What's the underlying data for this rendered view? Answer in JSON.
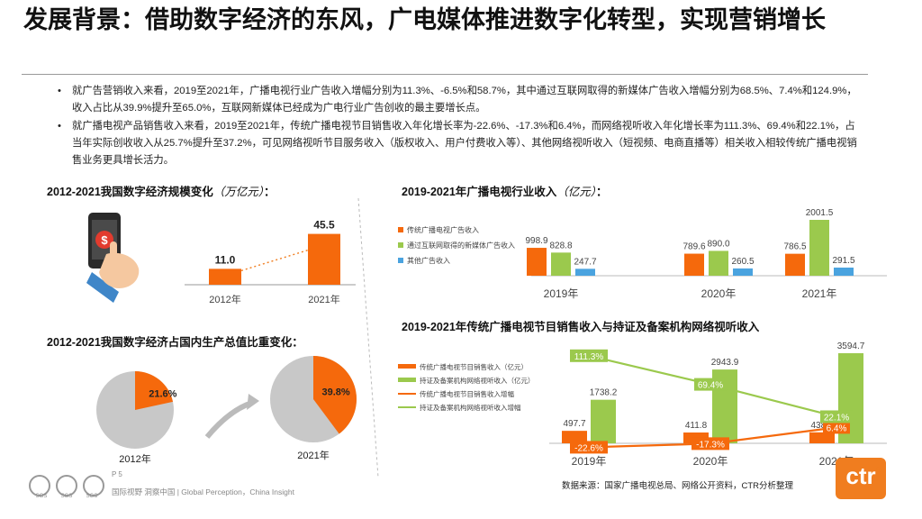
{
  "title": "发展背景：借助数字经济的东风，广电媒体推进数字化转型，实现营销增长",
  "bullets": [
    "就广告营销收入来看，2019至2021年，广播电视行业广告收入增幅分别为11.3%、-6.5%和58.7%，其中通过互联网取得的新媒体广告收入增幅分别为68.5%、7.4%和124.9%，收入占比从39.9%提升至65.0%，互联网新媒体已经成为广电行业广告创收的最主要增长点。",
    "就广播电视产品销售收入来看，2019至2021年，传统广播电视节目销售收入年化增长率为-22.6%、-17.3%和6.4%，而网络视听收入年化增长率为111.3%、69.4%和22.1%，占当年实际创收收入从25.7%提升至37.2%，可见网络视听节目服务收入（版权收入、用户付费收入等）、其他网络视听收入（短视频、电商直播等）相关收入相较传统广播电视销售业务更具增长活力。"
  ],
  "bullet_marker": "•",
  "sections": {
    "s1": {
      "title": "2012-2021我国数字经济规模变化",
      "unit": "（万亿元）",
      "suffix": "："
    },
    "s2": {
      "title": "2012-2021我国数字经济占国内生产总值比重变化："
    },
    "s3": {
      "title": "2019-2021年广播电视行业收入",
      "unit": "（亿元）",
      "suffix": "："
    },
    "s4": {
      "title": "2019-2021年传统广播电视节目销售收入与持证及备案机构网络视听收入"
    }
  },
  "chart_data": [
    {
      "type": "bar",
      "categories": [
        "2012年",
        "2021年"
      ],
      "values": [
        11.0,
        45.5
      ],
      "labels": [
        "11.0",
        "45.5"
      ],
      "color": "#f5690c"
    },
    {
      "type": "pie",
      "charts": [
        {
          "category": "2012年",
          "value": 21.6,
          "label": "21.6%"
        },
        {
          "category": "2021年",
          "value": 39.8,
          "label": "39.8%"
        }
      ],
      "colors": {
        "share": "#f5690c",
        "rest": "#c8c8c8"
      }
    },
    {
      "type": "bar",
      "categories": [
        "2019年",
        "2020年",
        "2021年"
      ],
      "series": [
        {
          "name": "传统广播电视广告收入",
          "color": "#f5690c",
          "values": [
            998.9,
            789.6,
            786.5
          ],
          "labels": [
            "998.9",
            "789.6",
            "786.5"
          ]
        },
        {
          "name": "通过互联网取得的新媒体广告收入",
          "color": "#9bc94d",
          "values": [
            828.8,
            890.0,
            2001.5
          ],
          "labels": [
            "828.8",
            "890.0",
            "2001.5"
          ]
        },
        {
          "name": "其他广告收入",
          "color": "#4aa3df",
          "values": [
            247.7,
            260.5,
            291.5
          ],
          "labels": [
            "247.7",
            "260.5",
            "291.5"
          ]
        }
      ]
    },
    {
      "type": "bar",
      "categories": [
        "2019年",
        "2020年",
        "2021年"
      ],
      "series": [
        {
          "name": "传统广播电视节目销售收入（亿元）",
          "kind": "bar",
          "color": "#f5690c",
          "values": [
            497.7,
            411.8,
            438.2
          ],
          "labels": [
            "497.7",
            "411.8",
            "438.2"
          ]
        },
        {
          "name": "持证及备案机构网络视听收入（亿元）",
          "kind": "bar",
          "color": "#9bc94d",
          "values": [
            1738.2,
            2943.9,
            3594.7
          ],
          "labels": [
            "1738.2",
            "2943.9",
            "3594.7"
          ]
        },
        {
          "name": "传统广播电视节目销售收入增幅",
          "kind": "line",
          "color": "#f5690c",
          "values": [
            -22.6,
            -17.3,
            6.4
          ],
          "labels": [
            "-22.6%",
            "-17.3%",
            "6.4%"
          ]
        },
        {
          "name": "持证及备案机构网络视听收入增幅",
          "kind": "line",
          "color": "#9bc94d",
          "values": [
            111.3,
            69.4,
            22.1
          ],
          "labels": [
            "111.3%",
            "69.4%",
            "22.1%"
          ]
        }
      ]
    }
  ],
  "footer": {
    "page": "P 5",
    "tagline": "国际视野  洞察中国 |  Global Perception，China Insight",
    "badge_text": "SGS"
  },
  "source": "数据来源：国家广播电视总局、网络公开资料，CTR分析整理",
  "logo": {
    "text": "ctr",
    "mark": "®"
  }
}
